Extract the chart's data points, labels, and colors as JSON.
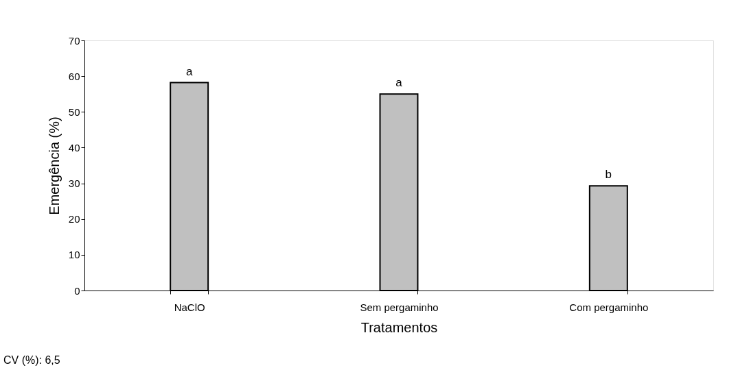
{
  "chart_data": {
    "type": "bar",
    "xlabel": "Tratamentos",
    "ylabel": "Emergência (%)",
    "categories": [
      "NaClO",
      "Sem pergaminho",
      "Com pergaminho"
    ],
    "values": [
      58.2,
      55.0,
      29.3
    ],
    "color": "#c0c0c0",
    "ylim": [
      0,
      70
    ],
    "yticks": [
      0,
      10,
      20,
      30,
      40,
      50,
      60,
      70
    ],
    "grid": false,
    "annotations": [
      {
        "text": "a",
        "x": "NaClO",
        "y": 58.2
      },
      {
        "text": "a",
        "x": "Sem pergaminho",
        "y": 55.0
      },
      {
        "text": "b",
        "x": "Com pergaminho",
        "y": 29.3
      },
      "CV (%): 6,5"
    ]
  }
}
